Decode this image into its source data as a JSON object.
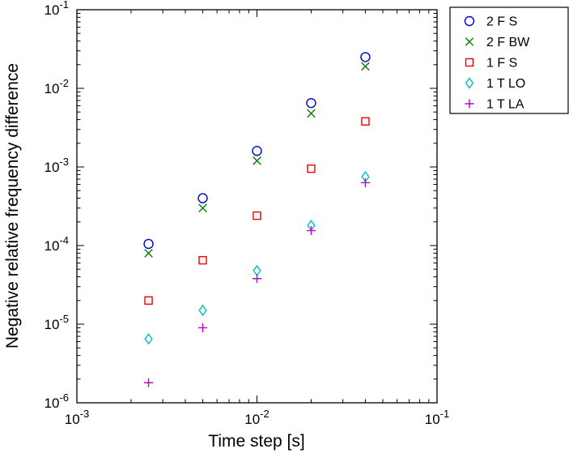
{
  "figure": {
    "background": "#ffffff",
    "axes_color": "#000000"
  },
  "chart_data": {
    "type": "scatter",
    "title": "",
    "xlabel": "Time step [s]",
    "ylabel": "Negative relative frequency difference",
    "xscale": "log",
    "yscale": "log",
    "xlim": [
      0.001,
      0.1
    ],
    "ylim": [
      1e-06,
      0.1
    ],
    "grid": false,
    "legend_position": "outside-top-right",
    "x": [
      0.0025,
      0.005,
      0.01,
      0.02,
      0.04
    ],
    "series": [
      {
        "name": "2 F S",
        "marker": "circle",
        "color": "#0000cc",
        "y": [
          0.000105,
          0.0004,
          0.0016,
          0.0065,
          0.025
        ]
      },
      {
        "name": "2 F BW",
        "marker": "x",
        "color": "#007f00",
        "y": [
          8e-05,
          0.0003,
          0.0012,
          0.0048,
          0.019
        ]
      },
      {
        "name": "1 F S",
        "marker": "square",
        "color": "#ee0000",
        "y": [
          2e-05,
          6.5e-05,
          0.00024,
          0.00095,
          0.0038
        ]
      },
      {
        "name": "1 T LO",
        "marker": "diamond",
        "color": "#00bfbf",
        "y": [
          6.5e-06,
          1.5e-05,
          4.8e-05,
          0.00018,
          0.00075
        ]
      },
      {
        "name": "1 T LA",
        "marker": "plus",
        "color": "#bf00bf",
        "y": [
          1.8e-06,
          9e-06,
          3.8e-05,
          0.000155,
          0.00063
        ]
      }
    ]
  }
}
